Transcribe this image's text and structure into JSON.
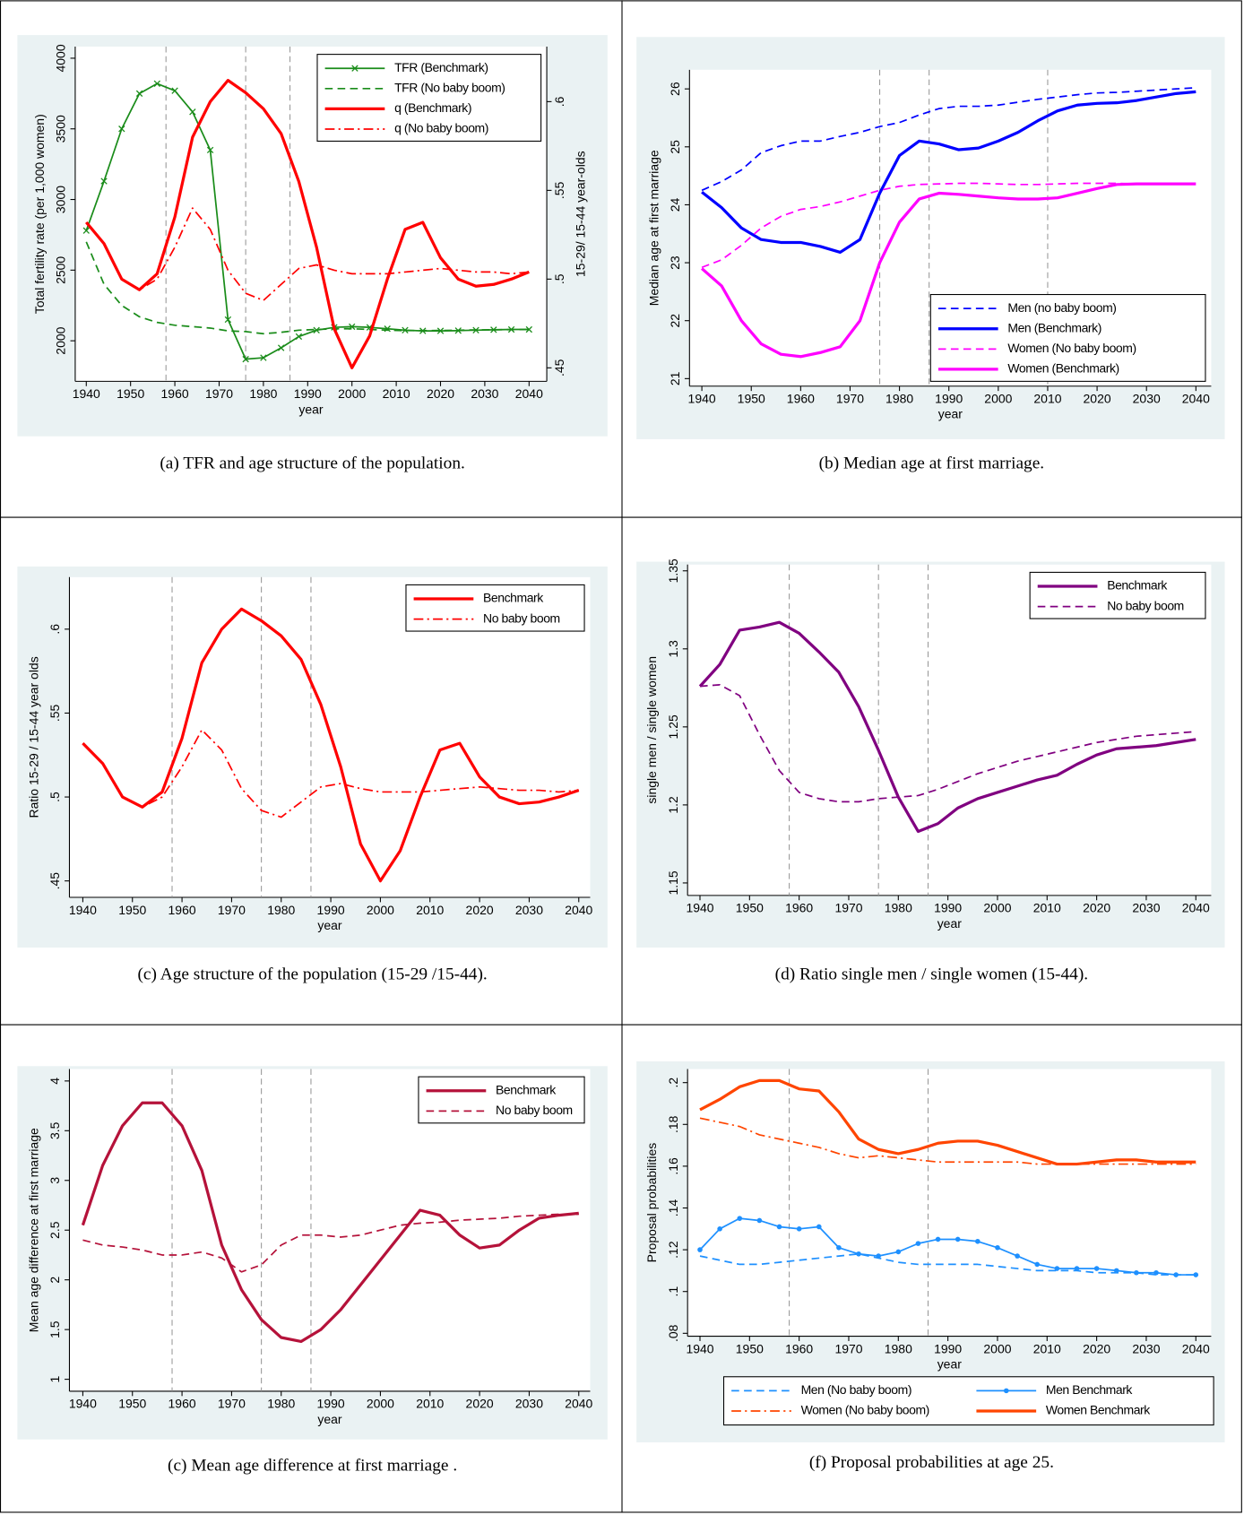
{
  "chart_data": [
    {
      "type": "line",
      "caption": "(a) TFR and age structure of the population.",
      "xlabel": "year",
      "ylabel": "Total fertility rate (per 1,000 women)",
      "y2label": "15-29/ 15-44 year-olds",
      "x": [
        1940,
        1944,
        1948,
        1952,
        1956,
        1960,
        1964,
        1968,
        1972,
        1976,
        1980,
        1984,
        1988,
        1992,
        1996,
        2000,
        2004,
        2008,
        2012,
        2016,
        2020,
        2024,
        2028,
        2032,
        2036,
        2040
      ],
      "xlim": [
        1937.5,
        2044
      ],
      "xticks": [
        1940,
        1950,
        1960,
        1970,
        1980,
        1990,
        2000,
        2010,
        2020,
        2030,
        2040
      ],
      "ylim": [
        1713,
        4082
      ],
      "yticks": [
        2000,
        2500,
        3000,
        3500,
        4000
      ],
      "y2lim": [
        0.4424,
        0.631
      ],
      "y2ticks": [
        {
          "value": 0.45,
          "label": ".45"
        },
        {
          "value": 0.5,
          "label": ".5"
        },
        {
          "value": 0.55,
          "label": ".55"
        },
        {
          "value": 0.6,
          "label": ".6"
        }
      ],
      "reference_lines": [
        1958,
        1976,
        1986
      ],
      "legend": "top-right",
      "series": [
        {
          "name": "TFR (Benchmark)",
          "color": "#1a8c1a",
          "line": "solid",
          "markers": "x",
          "values": [
            2780,
            3130,
            3500,
            3750,
            3820,
            3770,
            3620,
            3350,
            2150,
            1870,
            1880,
            1950,
            2030,
            2075,
            2095,
            2100,
            2095,
            2085,
            2075,
            2070,
            2070,
            2072,
            2075,
            2078,
            2080,
            2080
          ]
        },
        {
          "name": "TFR (No baby boom)",
          "color": "#1a8c1a",
          "line": "dashed",
          "values": [
            2700,
            2400,
            2250,
            2170,
            2130,
            2110,
            2100,
            2090,
            2070,
            2065,
            2050,
            2060,
            2075,
            2080,
            2085,
            2085,
            2080,
            2075,
            2072,
            2072,
            2073,
            2075,
            2077,
            2078,
            2079,
            2080
          ]
        },
        {
          "name": "q (Benchmark)",
          "color": "#ff0000",
          "line": "solid",
          "thick": true,
          "axis": "y2",
          "values": [
            0.532,
            0.52,
            0.5,
            0.494,
            0.503,
            0.535,
            0.58,
            0.6,
            0.612,
            0.605,
            0.596,
            0.582,
            0.555,
            0.518,
            0.472,
            0.45,
            0.468,
            0.5,
            0.528,
            0.532,
            0.512,
            0.5,
            0.496,
            0.497,
            0.5,
            0.504
          ]
        },
        {
          "name": "q (No baby boom)",
          "color": "#ff0000",
          "line": "dashdot",
          "axis": "y2",
          "values": [
            0.532,
            0.52,
            0.5,
            0.494,
            0.5,
            0.518,
            0.54,
            0.528,
            0.505,
            0.492,
            0.488,
            0.497,
            0.506,
            0.508,
            0.505,
            0.503,
            0.503,
            0.503,
            0.504,
            0.505,
            0.506,
            0.505,
            0.504,
            0.504,
            0.503,
            0.504
          ]
        }
      ]
    },
    {
      "type": "line",
      "caption": "(b) Median age at first marriage.",
      "xlabel": "year",
      "ylabel": "Median age at first marriage",
      "x": [
        1940,
        1944,
        1948,
        1952,
        1956,
        1960,
        1964,
        1968,
        1972,
        1976,
        1980,
        1984,
        1988,
        1992,
        1996,
        2000,
        2004,
        2008,
        2012,
        2016,
        2020,
        2024,
        2028,
        2032,
        2036,
        2040
      ],
      "xlim": [
        1937.5,
        2043.1
      ],
      "xticks": [
        1940,
        1950,
        1960,
        1970,
        1980,
        1990,
        2000,
        2010,
        2020,
        2030,
        2040
      ],
      "ylim": [
        20.87,
        26.33
      ],
      "yticks": [
        21,
        22,
        23,
        24,
        25,
        26
      ],
      "reference_lines": [
        1976,
        1986,
        2010
      ],
      "legend": "bottom-right",
      "series": [
        {
          "name": "Men (no baby boom)",
          "color": "#0000ff",
          "line": "dashed",
          "values": [
            24.25,
            24.4,
            24.6,
            24.9,
            25.02,
            25.1,
            25.1,
            25.18,
            25.25,
            25.35,
            25.42,
            25.55,
            25.66,
            25.7,
            25.7,
            25.72,
            25.77,
            25.82,
            25.86,
            25.9,
            25.93,
            25.94,
            25.96,
            25.98,
            26.0,
            26.02
          ]
        },
        {
          "name": "Men (Benchmark)",
          "color": "#0000ff",
          "line": "solid",
          "thick": true,
          "values": [
            24.22,
            23.95,
            23.6,
            23.4,
            23.35,
            23.35,
            23.28,
            23.18,
            23.4,
            24.2,
            24.85,
            25.1,
            25.05,
            24.95,
            24.98,
            25.1,
            25.25,
            25.45,
            25.62,
            25.72,
            25.75,
            25.76,
            25.8,
            25.86,
            25.92,
            25.95
          ]
        },
        {
          "name": "Women (No baby boom)",
          "color": "#ff00ff",
          "line": "dashed",
          "values": [
            22.92,
            23.05,
            23.3,
            23.6,
            23.8,
            23.92,
            23.97,
            24.05,
            24.15,
            24.25,
            24.32,
            24.35,
            24.36,
            24.37,
            24.37,
            24.36,
            24.35,
            24.35,
            24.36,
            24.37,
            24.37,
            24.37,
            24.36,
            24.36,
            24.36,
            24.36
          ]
        },
        {
          "name": "Women (Benchmark)",
          "color": "#ff00ff",
          "line": "solid",
          "thick": true,
          "values": [
            22.9,
            22.6,
            22.0,
            21.6,
            21.42,
            21.38,
            21.45,
            21.55,
            22.0,
            23.0,
            23.7,
            24.1,
            24.2,
            24.18,
            24.15,
            24.12,
            24.1,
            24.1,
            24.12,
            24.2,
            24.28,
            24.35,
            24.36,
            24.36,
            24.36,
            24.36
          ]
        }
      ]
    },
    {
      "type": "line",
      "caption": "(c) Age structure of the population (15-29 /15-44).",
      "xlabel": "year",
      "ylabel": "Ratio 15-29 / 15-44 year olds",
      "x": [
        1940,
        1944,
        1948,
        1952,
        1956,
        1960,
        1964,
        1968,
        1972,
        1976,
        1980,
        1984,
        1988,
        1992,
        1996,
        2000,
        2004,
        2008,
        2012,
        2016,
        2020,
        2024,
        2028,
        2032,
        2036,
        2040
      ],
      "xlim": [
        1937.3,
        2042.3
      ],
      "xticks": [
        1940,
        1950,
        1960,
        1970,
        1980,
        1990,
        2000,
        2010,
        2020,
        2030,
        2040
      ],
      "ylim": [
        0.4402,
        0.631
      ],
      "yticks": [
        {
          "value": 0.45,
          "label": ".45"
        },
        {
          "value": 0.5,
          "label": ".5"
        },
        {
          "value": 0.55,
          "label": ".55"
        },
        {
          "value": 0.6,
          "label": ".6"
        }
      ],
      "reference_lines": [
        1958,
        1976,
        1986
      ],
      "legend": "top-right",
      "series": [
        {
          "name": "Benchmark",
          "color": "#ff0000",
          "line": "solid",
          "thick": true,
          "values": [
            0.532,
            0.52,
            0.5,
            0.494,
            0.503,
            0.535,
            0.58,
            0.6,
            0.612,
            0.605,
            0.596,
            0.582,
            0.555,
            0.518,
            0.472,
            0.45,
            0.468,
            0.5,
            0.528,
            0.532,
            0.512,
            0.5,
            0.496,
            0.497,
            0.5,
            0.504
          ]
        },
        {
          "name": "No baby boom",
          "color": "#ff0000",
          "line": "dashdot",
          "values": [
            0.532,
            0.52,
            0.5,
            0.494,
            0.5,
            0.518,
            0.54,
            0.528,
            0.505,
            0.492,
            0.488,
            0.497,
            0.506,
            0.508,
            0.505,
            0.503,
            0.503,
            0.503,
            0.504,
            0.505,
            0.506,
            0.505,
            0.504,
            0.504,
            0.503,
            0.504
          ]
        }
      ]
    },
    {
      "type": "line",
      "caption": "(d) Ratio single men / single women (15-44).",
      "xlabel": "year",
      "ylabel": "single men / single women",
      "x": [
        1940,
        1944,
        1948,
        1952,
        1956,
        1960,
        1964,
        1968,
        1972,
        1976,
        1980,
        1984,
        1988,
        1992,
        1996,
        2000,
        2004,
        2008,
        2012,
        2016,
        2020,
        2024,
        2028,
        2032,
        2036,
        2040
      ],
      "xlim": [
        1937.5,
        2043.1
      ],
      "xticks": [
        1940,
        1950,
        1960,
        1970,
        1980,
        1990,
        2000,
        2010,
        2020,
        2030,
        2040
      ],
      "ylim": [
        1.142,
        1.354
      ],
      "yticks": [
        1.15,
        1.2,
        1.25,
        1.3,
        1.35
      ],
      "reference_lines": [
        1958,
        1976,
        1986
      ],
      "legend": "top-right",
      "series": [
        {
          "name": "Benchmark",
          "color": "#800080",
          "line": "solid",
          "thick": true,
          "values": [
            1.276,
            1.29,
            1.312,
            1.314,
            1.317,
            1.31,
            1.298,
            1.285,
            1.263,
            1.235,
            1.205,
            1.183,
            1.188,
            1.198,
            1.204,
            1.208,
            1.212,
            1.216,
            1.219,
            1.226,
            1.232,
            1.236,
            1.237,
            1.238,
            1.24,
            1.242
          ]
        },
        {
          "name": "No baby boom",
          "color": "#800080",
          "line": "dashed",
          "values": [
            1.276,
            1.277,
            1.27,
            1.245,
            1.222,
            1.208,
            1.204,
            1.202,
            1.202,
            1.204,
            1.205,
            1.206,
            1.21,
            1.215,
            1.22,
            1.224,
            1.228,
            1.231,
            1.234,
            1.237,
            1.24,
            1.242,
            1.244,
            1.245,
            1.246,
            1.247
          ]
        }
      ]
    },
    {
      "type": "line",
      "caption": "(c) Mean age difference at first marriage .",
      "xlabel": "year",
      "ylabel": "Mean age difference at first marriage",
      "x": [
        1940,
        1944,
        1948,
        1952,
        1956,
        1960,
        1964,
        1968,
        1972,
        1976,
        1980,
        1984,
        1988,
        1992,
        1996,
        2000,
        2004,
        2008,
        2012,
        2016,
        2020,
        2024,
        2028,
        2032,
        2036,
        2040
      ],
      "xlim": [
        1937.3,
        2042.3
      ],
      "xticks": [
        1940,
        1950,
        1960,
        1970,
        1980,
        1990,
        2000,
        2010,
        2020,
        2030,
        2040
      ],
      "ylim": [
        0.88,
        4.12
      ],
      "yticks": [
        1,
        1.5,
        2,
        2.5,
        3,
        3.5,
        4
      ],
      "reference_lines": [
        1958,
        1976,
        1986
      ],
      "legend": "top-right",
      "series": [
        {
          "name": "Benchmark",
          "color": "#b5123a",
          "line": "solid",
          "thick": true,
          "values": [
            2.55,
            3.15,
            3.55,
            3.78,
            3.78,
            3.55,
            3.1,
            2.35,
            1.9,
            1.6,
            1.42,
            1.38,
            1.5,
            1.7,
            1.95,
            2.2,
            2.45,
            2.7,
            2.65,
            2.45,
            2.32,
            2.35,
            2.5,
            2.62,
            2.65,
            2.67
          ]
        },
        {
          "name": "No baby boom",
          "color": "#b5123a",
          "line": "dashed",
          "values": [
            2.4,
            2.35,
            2.33,
            2.3,
            2.25,
            2.25,
            2.28,
            2.22,
            2.08,
            2.15,
            2.35,
            2.45,
            2.45,
            2.43,
            2.45,
            2.5,
            2.55,
            2.57,
            2.58,
            2.6,
            2.61,
            2.62,
            2.64,
            2.65,
            2.66,
            2.66
          ]
        }
      ]
    },
    {
      "type": "line",
      "caption": "(f) Proposal probabilities at age 25.",
      "xlabel": "year",
      "ylabel": "Proposal probabilities",
      "x": [
        1940,
        1944,
        1948,
        1952,
        1956,
        1960,
        1964,
        1968,
        1972,
        1976,
        1980,
        1984,
        1988,
        1992,
        1996,
        2000,
        2004,
        2008,
        2012,
        2016,
        2020,
        2024,
        2028,
        2032,
        2036,
        2040
      ],
      "xlim": [
        1937.5,
        2043.1
      ],
      "xticks": [
        1940,
        1950,
        1960,
        1970,
        1980,
        1990,
        2000,
        2010,
        2020,
        2030,
        2040
      ],
      "ylim": [
        0.0786,
        0.2065
      ],
      "yticks": [
        {
          "value": 0.08,
          "label": ".08"
        },
        {
          "value": 0.1,
          "label": ".1"
        },
        {
          "value": 0.12,
          "label": ".12"
        },
        {
          "value": 0.14,
          "label": ".14"
        },
        {
          "value": 0.16,
          "label": ".16"
        },
        {
          "value": 0.18,
          "label": ".18"
        },
        {
          "value": 0.2,
          "label": ".2"
        }
      ],
      "reference_lines": [
        1958,
        1986
      ],
      "legend": "below",
      "series": [
        {
          "name": "Men (No baby boom)",
          "color": "#1e90ff",
          "line": "dashed",
          "values": [
            0.117,
            0.115,
            0.113,
            0.113,
            0.114,
            0.115,
            0.116,
            0.117,
            0.118,
            0.116,
            0.114,
            0.113,
            0.113,
            0.113,
            0.113,
            0.112,
            0.111,
            0.11,
            0.11,
            0.11,
            0.109,
            0.109,
            0.109,
            0.108,
            0.108,
            0.108
          ]
        },
        {
          "name": "Women (No baby boom)",
          "color": "#ff4500",
          "line": "dashdot",
          "values": [
            0.183,
            0.181,
            0.179,
            0.175,
            0.173,
            0.171,
            0.169,
            0.166,
            0.164,
            0.165,
            0.164,
            0.163,
            0.162,
            0.162,
            0.162,
            0.162,
            0.162,
            0.161,
            0.161,
            0.161,
            0.161,
            0.161,
            0.161,
            0.161,
            0.161,
            0.161
          ]
        },
        {
          "name": "Men Benchmark",
          "color": "#1e90ff",
          "line": "solid",
          "markers": "dot",
          "values": [
            0.12,
            0.13,
            0.135,
            0.134,
            0.131,
            0.13,
            0.131,
            0.121,
            0.118,
            0.117,
            0.119,
            0.123,
            0.125,
            0.125,
            0.124,
            0.121,
            0.117,
            0.113,
            0.111,
            0.111,
            0.111,
            0.11,
            0.109,
            0.109,
            0.108,
            0.108
          ]
        },
        {
          "name": "Women Benchmark",
          "color": "#ff4500",
          "line": "solid",
          "thick": true,
          "values": [
            0.187,
            0.192,
            0.198,
            0.201,
            0.201,
            0.197,
            0.196,
            0.186,
            0.173,
            0.168,
            0.166,
            0.168,
            0.171,
            0.172,
            0.172,
            0.17,
            0.167,
            0.164,
            0.161,
            0.161,
            0.162,
            0.163,
            0.163,
            0.162,
            0.162,
            0.162
          ]
        }
      ]
    }
  ]
}
